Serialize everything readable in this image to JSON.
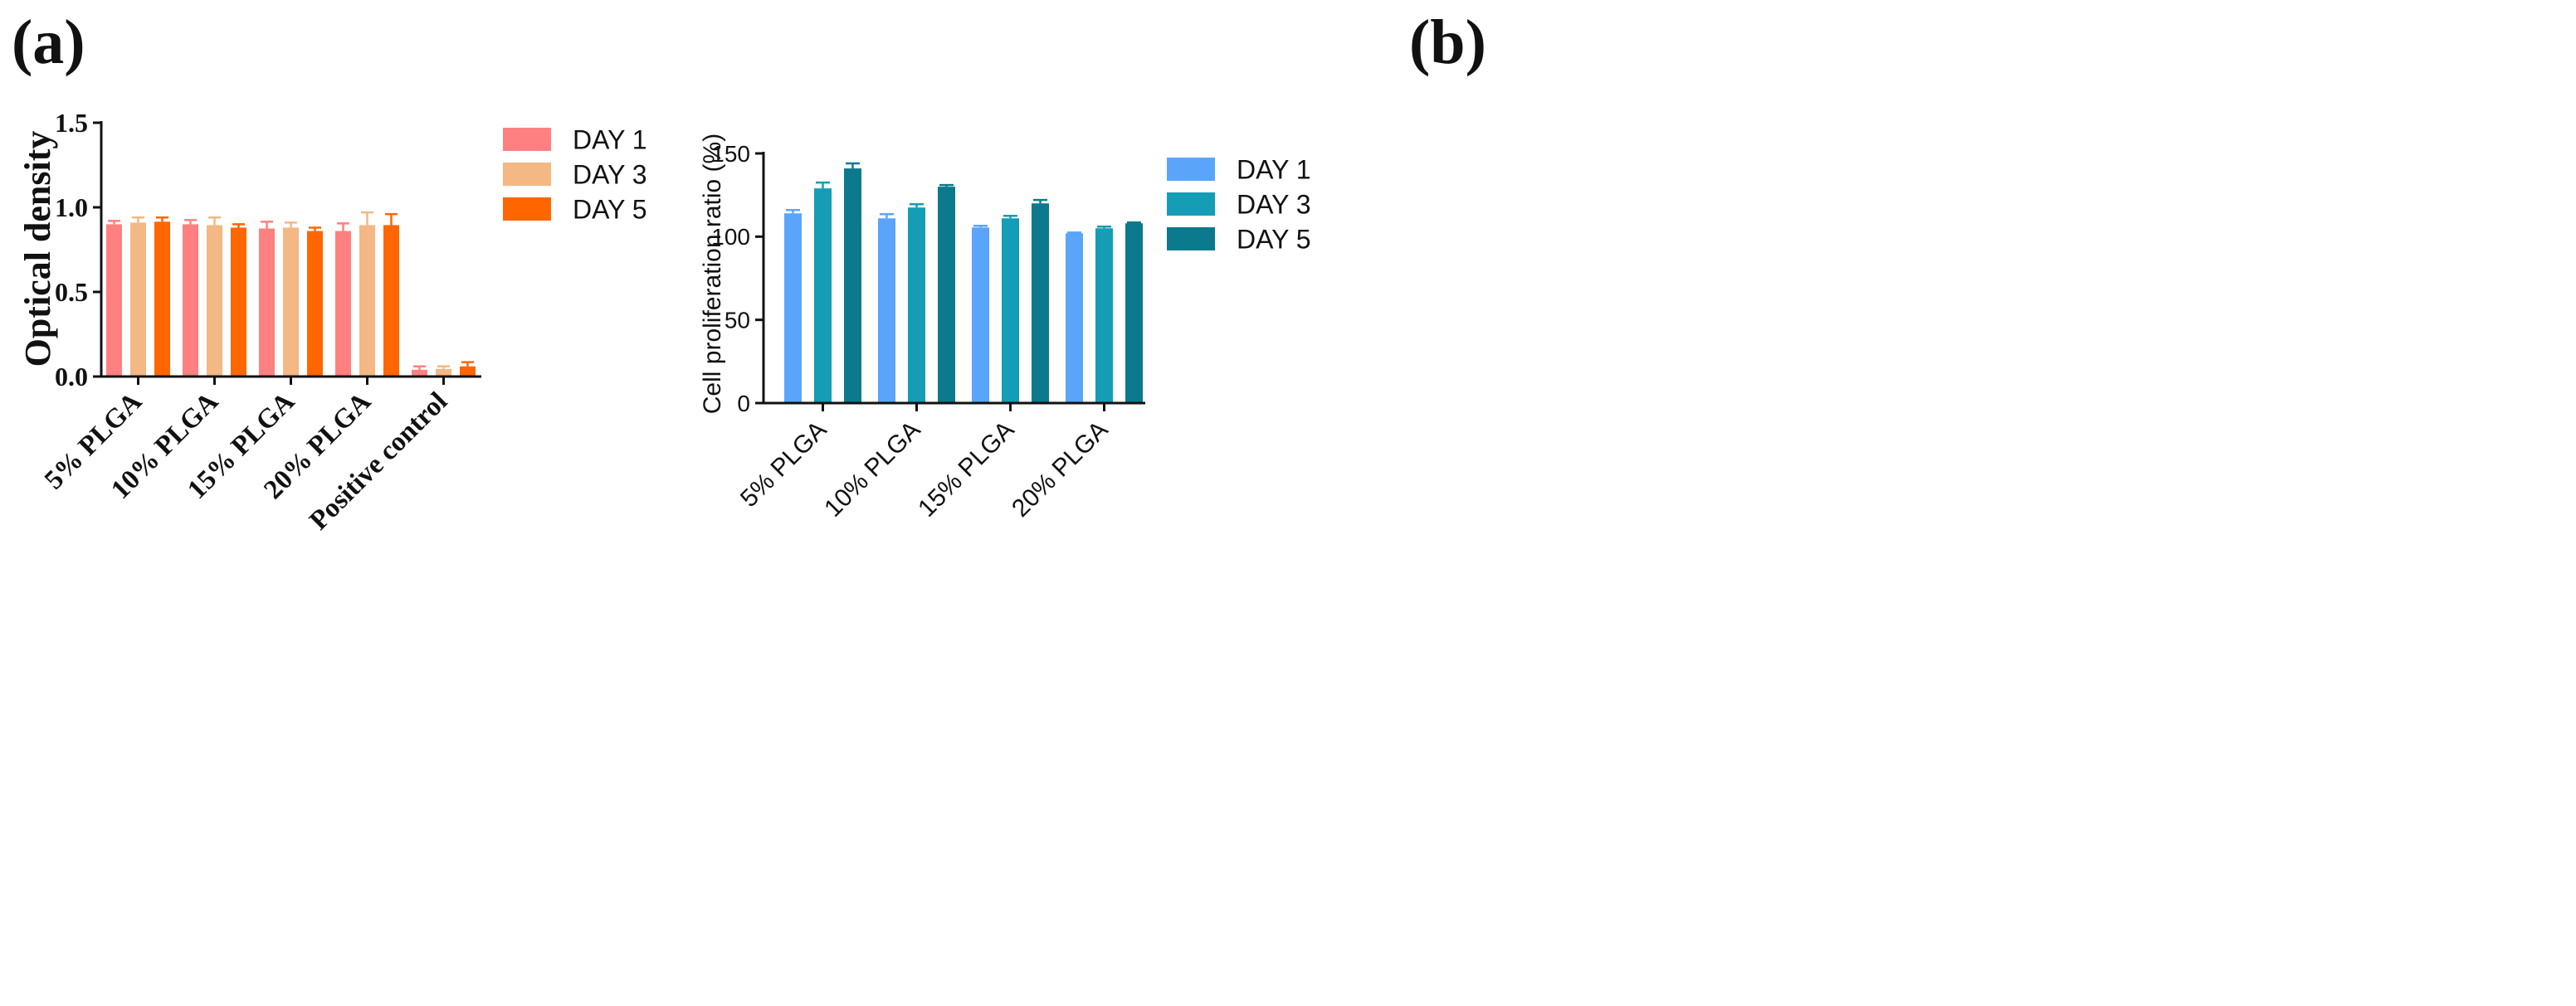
{
  "figure": {
    "panel_a_label": "(a)",
    "panel_b_label": "(b)"
  },
  "chart_data": [
    {
      "type": "bar",
      "panel": "(a)",
      "title": "",
      "xlabel": "",
      "ylabel": "Optical density",
      "ylim": [
        0,
        1.5
      ],
      "yticks": [
        "0.0",
        "0.5",
        "1.0",
        "1.5"
      ],
      "categories": [
        "5% PLGA",
        "10% PLGA",
        "15% PLGA",
        "20% PLGA",
        "Positive control"
      ],
      "series": [
        {
          "name": "DAY 1",
          "color": "#FF8080",
          "values": [
            0.9,
            0.9,
            0.875,
            0.86,
            0.04
          ],
          "errors": [
            0.02,
            0.025,
            0.04,
            0.045,
            0.02
          ]
        },
        {
          "name": "DAY 3",
          "color": "#F3B884",
          "values": [
            0.91,
            0.895,
            0.88,
            0.895,
            0.045
          ],
          "errors": [
            0.03,
            0.045,
            0.03,
            0.075,
            0.015
          ]
        },
        {
          "name": "DAY 5",
          "color": "#FF6600",
          "values": [
            0.915,
            0.88,
            0.86,
            0.895,
            0.06
          ],
          "errors": [
            0.025,
            0.02,
            0.02,
            0.065,
            0.025
          ]
        }
      ],
      "legend": "right"
    },
    {
      "type": "bar",
      "panel": "(b)",
      "title": "",
      "xlabel": "",
      "ylabel": "Cell proliferation ratio (%)",
      "ylim": [
        0,
        150
      ],
      "yticks": [
        "0",
        "50",
        "100",
        "150"
      ],
      "categories": [
        "5% PLGA",
        "10% PLGA",
        "15% PLGA",
        "20% PLGA"
      ],
      "series": [
        {
          "name": "DAY 1",
          "color": "#5AA5FA",
          "values": [
            114,
            111,
            105.5,
            102
          ],
          "errors": [
            2,
            2.5,
            1,
            0.5
          ]
        },
        {
          "name": "DAY 3",
          "color": "#149DB4",
          "values": [
            129,
            117.5,
            111,
            105
          ],
          "errors": [
            3.5,
            2,
            1.5,
            1
          ]
        },
        {
          "name": "DAY 5",
          "color": "#0B7A8C",
          "values": [
            141,
            130,
            120,
            108
          ],
          "errors": [
            3,
            1,
            2,
            0.5
          ]
        }
      ],
      "legend": "right"
    }
  ]
}
